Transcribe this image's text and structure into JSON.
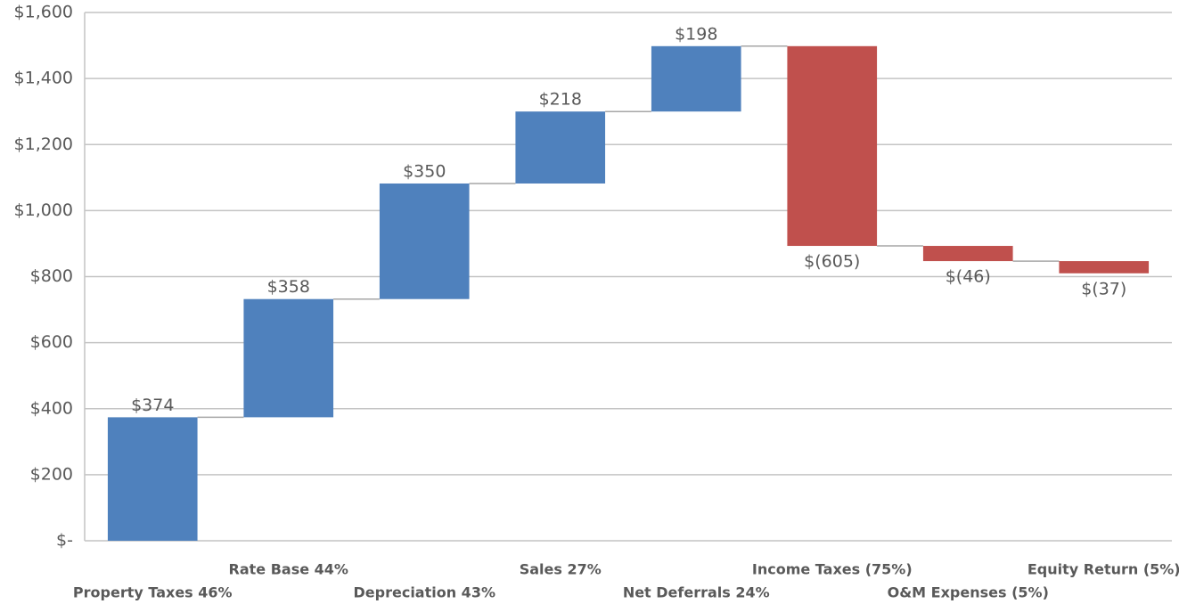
{
  "chart_data": {
    "type": "waterfall",
    "categories": [
      "Property Taxes 46%",
      "Rate Base 44%",
      "Depreciation 43%",
      "Sales 27%",
      "Net Deferrals 24%",
      "Income Taxes (75%)",
      "O&M Expenses (5%)",
      "Equity Return (5%)"
    ],
    "values": [
      374,
      358,
      350,
      218,
      198,
      -605,
      -46,
      -37
    ],
    "value_labels": [
      "$374",
      "$358",
      "$350",
      "$218",
      "$198",
      "$(605)",
      "$(46)",
      "$(37)"
    ],
    "increase_color": "#4f81bd",
    "decrease_color": "#c0504d",
    "ylim": [
      0,
      1600
    ],
    "yticks": [
      {
        "value": 0,
        "label": "$-"
      },
      {
        "value": 200,
        "label": "$200"
      },
      {
        "value": 400,
        "label": "$400"
      },
      {
        "value": 600,
        "label": "$600"
      },
      {
        "value": 800,
        "label": "$800"
      },
      {
        "value": 1000,
        "label": "$1,000"
      },
      {
        "value": 1200,
        "label": "$1,200"
      },
      {
        "value": 1400,
        "label": "$1,400"
      },
      {
        "value": 1600,
        "label": "$1,600"
      }
    ],
    "grid": true
  }
}
